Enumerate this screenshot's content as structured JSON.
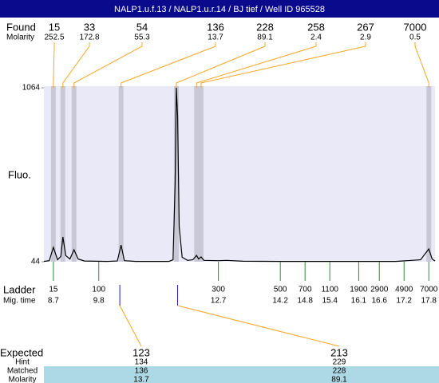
{
  "chart_data": {
    "type": "line",
    "title": "NALP1.u.f.13 / NALP1.u.r.14 / BJ tief / Well ID 965528",
    "y_label": "Fluo.",
    "ylim": [
      44,
      1064
    ],
    "yticks": [
      44,
      1064
    ],
    "xlim": [
      8.47,
      17.95
    ],
    "x": [
      8.47,
      8.6,
      8.7,
      8.8,
      8.88,
      8.93,
      9.0,
      9.1,
      9.2,
      9.3,
      9.45,
      10.0,
      10.25,
      10.34,
      10.42,
      10.7,
      11.5,
      11.6,
      11.65,
      11.68,
      11.71,
      11.75,
      11.82,
      11.95,
      12.08,
      12.17,
      12.22,
      12.28,
      12.35,
      12.7,
      12.9,
      13.3,
      14.2,
      15.4,
      17.0,
      17.6,
      17.8,
      17.88,
      17.95
    ],
    "values": [
      46,
      50,
      128,
      55,
      75,
      189,
      80,
      60,
      114,
      60,
      48,
      46,
      48,
      142,
      50,
      46,
      46,
      55,
      500,
      1064,
      900,
      250,
      70,
      52,
      55,
      81,
      60,
      72,
      52,
      50,
      52,
      47,
      46,
      46,
      46,
      55,
      119,
      60,
      48
    ],
    "color": "#000000",
    "found": {
      "label": "Found",
      "molarity_label": "Molarity",
      "sizes": [
        15,
        33,
        54,
        136,
        228,
        258,
        267,
        7000
      ],
      "molarity": [
        252.5,
        172.8,
        55.3,
        13.7,
        89.1,
        2.4,
        2.9,
        0.5
      ],
      "times": [
        8.7,
        8.93,
        9.2,
        10.34,
        11.68,
        12.17,
        12.28,
        17.8
      ]
    },
    "ladder": {
      "label": "Ladder",
      "time_label": "Mig. time",
      "sizes": [
        15,
        100,
        300,
        500,
        700,
        1100,
        1900,
        2900,
        4900,
        7000
      ],
      "times": [
        8.7,
        9.8,
        12.7,
        14.2,
        14.8,
        15.4,
        16.1,
        16.6,
        17.2,
        17.8
      ]
    },
    "expected": {
      "label": "Expected",
      "hint_label": "Hint",
      "matched_label": "Matched",
      "molarity_label": "Molarity",
      "sizes": [
        123,
        213
      ],
      "times": [
        10.31,
        11.71
      ],
      "hint": [
        134,
        229
      ],
      "matched": [
        136,
        228
      ],
      "molarity": [
        13.7,
        89.1
      ]
    }
  }
}
